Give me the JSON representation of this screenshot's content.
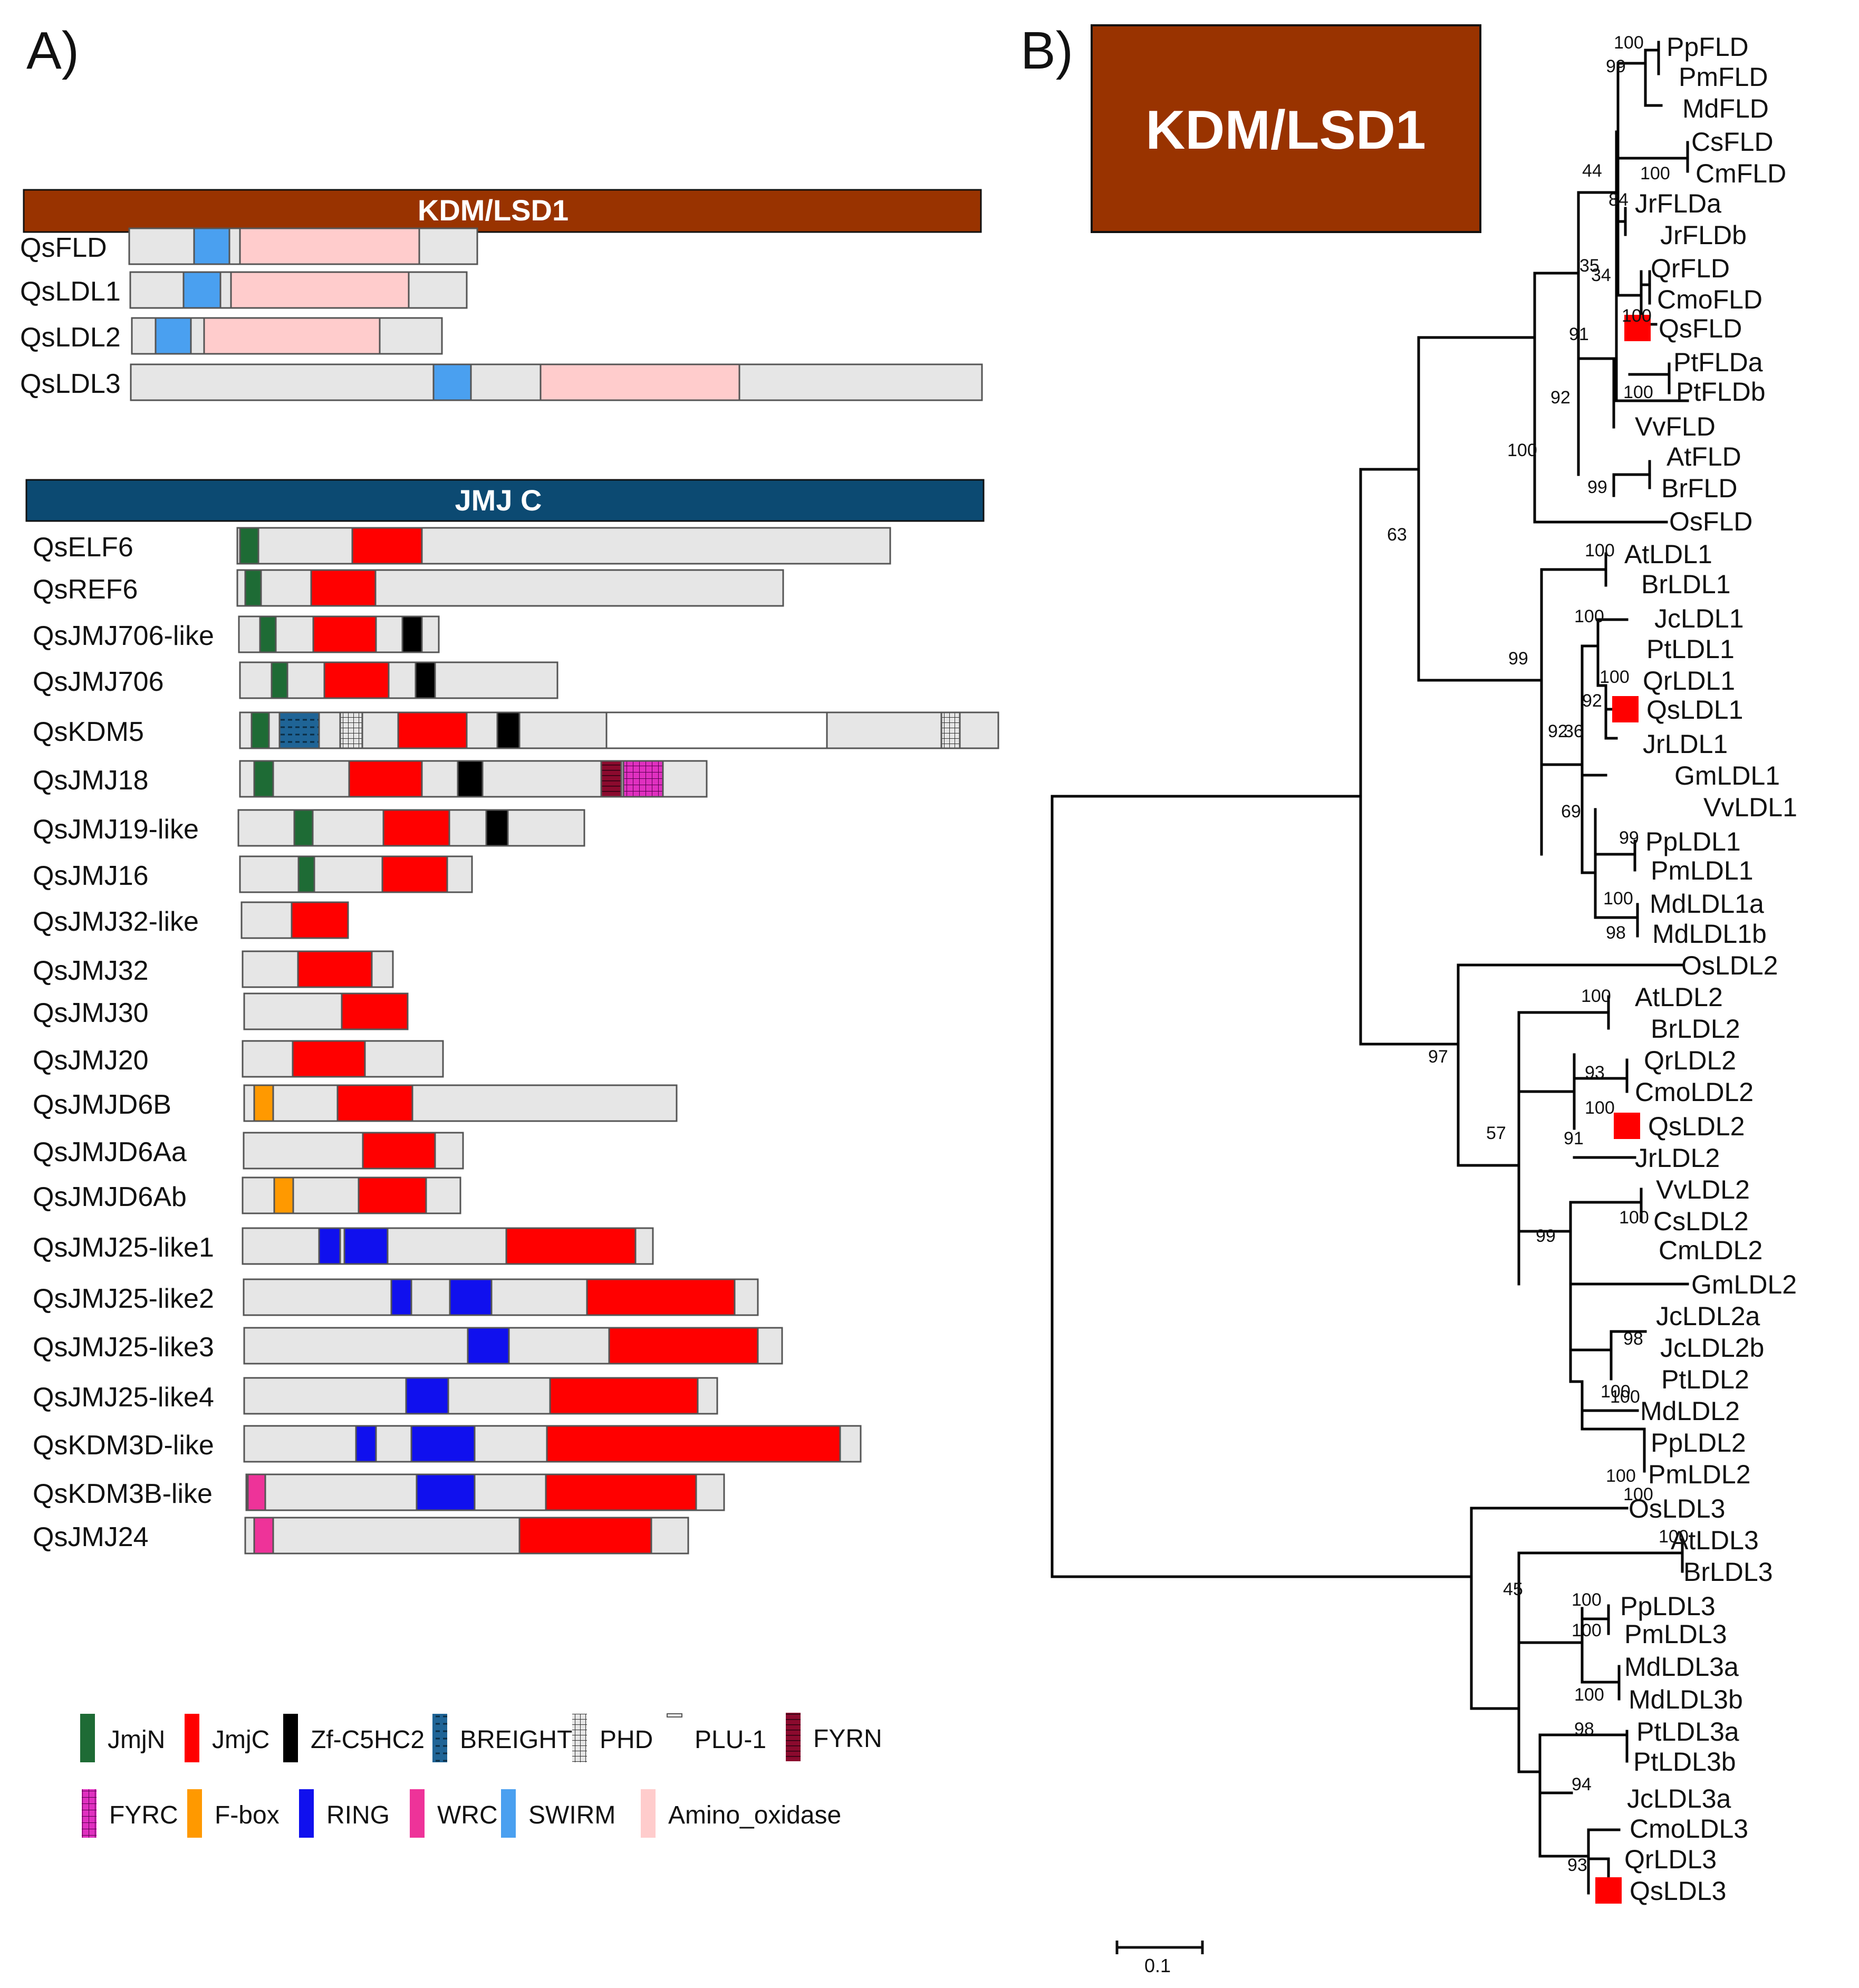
{
  "panel_a": {
    "label": "A)",
    "lsd_header": "KDM/LSD1",
    "jmj_header": "JMJ C",
    "lsd_proteins": [
      {
        "name": "QsFLD",
        "domains": [
          "SWIRM",
          "Amino_oxidase"
        ]
      },
      {
        "name": "QsLDL1",
        "domains": [
          "SWIRM",
          "Amino_oxidase"
        ]
      },
      {
        "name": "QsLDL2",
        "domains": [
          "SWIRM",
          "Amino_oxidase"
        ]
      },
      {
        "name": "QsLDL3",
        "domains": [
          "SWIRM",
          "Amino_oxidase"
        ]
      }
    ],
    "jmj_proteins": [
      {
        "name": "QsELF6",
        "domains": [
          "JmjN",
          "JmjC"
        ]
      },
      {
        "name": "QsREF6",
        "domains": [
          "JmjN",
          "JmjC"
        ]
      },
      {
        "name": "QsJMJ706-like",
        "domains": [
          "JmjN",
          "JmjC",
          "Zf-C5HC2"
        ]
      },
      {
        "name": "QsJMJ706",
        "domains": [
          "JmjN",
          "JmjC",
          "Zf-C5HC2"
        ]
      },
      {
        "name": "QsKDM5",
        "domains": [
          "JmjN",
          "BREIGHT",
          "PHD",
          "JmjC",
          "Zf-C5HC2",
          "PLU-1",
          "PHD"
        ]
      },
      {
        "name": "QsJMJ18",
        "domains": [
          "JmjN",
          "JmjC",
          "Zf-C5HC2",
          "FYRN",
          "FYRC"
        ]
      },
      {
        "name": "QsJMJ19-like",
        "domains": [
          "JmjN",
          "JmjC",
          "Zf-C5HC2"
        ]
      },
      {
        "name": "QsJMJ16",
        "domains": [
          "JmjN",
          "JmjC"
        ]
      },
      {
        "name": "QsJMJ32-like",
        "domains": [
          "JmjC"
        ]
      },
      {
        "name": "QsJMJ32",
        "domains": [
          "JmjC"
        ]
      },
      {
        "name": "QsJMJ30",
        "domains": [
          "JmjC"
        ]
      },
      {
        "name": "QsJMJ20",
        "domains": [
          "JmjC"
        ]
      },
      {
        "name": "QsJMJD6B",
        "domains": [
          "F-box",
          "JmjC"
        ]
      },
      {
        "name": "QsJMJD6Aa",
        "domains": [
          "JmjC"
        ]
      },
      {
        "name": "QsJMJD6Ab",
        "domains": [
          "F-box",
          "JmjC"
        ]
      },
      {
        "name": "QsJMJ25-like1",
        "domains": [
          "RING",
          "RING",
          "JmjC"
        ]
      },
      {
        "name": "QsJMJ25-like2",
        "domains": [
          "RING",
          "RING",
          "JmjC"
        ]
      },
      {
        "name": "QsJMJ25-like3",
        "domains": [
          "RING",
          "JmjC"
        ]
      },
      {
        "name": "QsJMJ25-like4",
        "domains": [
          "RING",
          "JmjC"
        ]
      },
      {
        "name": "QsKDM3D-like",
        "domains": [
          "RING",
          "RING",
          "JmjC"
        ]
      },
      {
        "name": "QsKDM3B-like",
        "domains": [
          "WRC",
          "RING",
          "JmjC"
        ]
      },
      {
        "name": "QsJMJ24",
        "domains": [
          "WRC",
          "JmjC"
        ]
      }
    ],
    "legend": [
      {
        "name": "JmjN",
        "color": "#1e6b35"
      },
      {
        "name": "JmjC",
        "color": "#ff0000"
      },
      {
        "name": "Zf-C5HC2",
        "color": "#000000"
      },
      {
        "name": "BREIGHT",
        "color": "#1f6496"
      },
      {
        "name": "PHD",
        "color": "#cfcfcf"
      },
      {
        "name": "PLU-1",
        "color": "#ffffff"
      },
      {
        "name": "FYRN",
        "color": "#8b0a2e"
      },
      {
        "name": "FYRC",
        "color": "#e030c0"
      },
      {
        "name": "F-box",
        "color": "#ff9900"
      },
      {
        "name": "RING",
        "color": "#1010ee"
      },
      {
        "name": "WRC",
        "color": "#ee3399"
      },
      {
        "name": "SWIRM",
        "color": "#4aa0f0"
      },
      {
        "name": "Amino_oxidase",
        "color": "#ffcccc"
      }
    ]
  },
  "panel_b": {
    "label": "B)",
    "title": "KDM/LSD1",
    "scale_label": "0.1",
    "leaves": [
      "PpFLD",
      "PmFLD",
      "MdFLD",
      "CsFLD",
      "CmFLD",
      "JrFLDa",
      "JrFLDb",
      "QrFLD",
      "CmoFLD",
      "QsFLD",
      "PtFLDa",
      "PtFLDb",
      "VvFLD",
      "AtFLD",
      "BrFLD",
      "OsFLD",
      "AtLDL1",
      "BrLDL1",
      "JcLDL1",
      "PtLDL1",
      "QrLDL1",
      "QsLDL1",
      "JrLDL1",
      "GmLDL1",
      "VvLDL1",
      "PpLDL1",
      "PmLDL1",
      "MdLDL1a",
      "MdLDL1b",
      "OsLDL2",
      "AtLDL2",
      "BrLDL2",
      "QrLDL2",
      "CmoLDL2",
      "QsLDL2",
      "JrLDL2",
      "VvLDL2",
      "CsLDL2",
      "CmLDL2",
      "GmLDL2",
      "JcLDL2a",
      "JcLDL2b",
      "PtLDL2",
      "MdLDL2",
      "PpLDL2",
      "PmLDL2",
      "OsLDL3",
      "AtLDL3",
      "BrLDL3",
      "PpLDL3",
      "PmLDL3",
      "MdLDL3a",
      "MdLDL3b",
      "PtLDL3a",
      "PtLDL3b",
      "JcLDL3a",
      "CmoLDL3",
      "QrLDL3",
      "QsLDL3"
    ],
    "highlighted": [
      "QsFLD",
      "QsLDL1",
      "QsLDL2",
      "QsLDL3"
    ],
    "bootstrap": [
      "100",
      "99",
      "100",
      "44",
      "84",
      "35",
      "34",
      "100",
      "100",
      "91",
      "92",
      "100",
      "99",
      "63",
      "100",
      "100",
      "99",
      "100",
      "92",
      "92",
      "36",
      "69",
      "99",
      "100",
      "98",
      "97",
      "100",
      "93",
      "100",
      "91",
      "57",
      "99",
      "100",
      "98",
      "100",
      "100",
      "100",
      "100",
      "100",
      "45",
      "100",
      "100",
      "100",
      "98",
      "94",
      "93"
    ]
  }
}
